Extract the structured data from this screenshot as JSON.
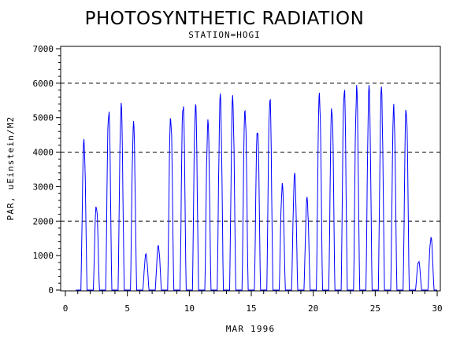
{
  "chart_data": {
    "type": "line",
    "title": "PHOTOSYNTHETIC RADIATION",
    "subtitle": "STATION=HOGI",
    "xlabel": "MAR 1996",
    "ylabel": "PAR, uEinstein/M2",
    "xlim": [
      0,
      30
    ],
    "ylim": [
      0,
      7000
    ],
    "x_ticks": [
      0,
      5,
      10,
      15,
      20,
      25,
      30
    ],
    "y_ticks": [
      0,
      1000,
      2000,
      3000,
      4000,
      5000,
      6000,
      7000
    ],
    "reference_lines": [
      2000,
      4000,
      6000
    ],
    "grid": false,
    "series_color": "#0000ff",
    "series": [
      {
        "daily_peaks": [
          {
            "day": 1,
            "peak": 4400
          },
          {
            "day": 2,
            "peak": 2500
          },
          {
            "day": 3,
            "peak": 5350
          },
          {
            "day": 4,
            "peak": 5450
          },
          {
            "day": 5,
            "peak": 4900
          },
          {
            "day": 6,
            "peak": 1050
          },
          {
            "day": 7,
            "peak": 1300
          },
          {
            "day": 8,
            "peak": 5150
          },
          {
            "day": 9,
            "peak": 5550
          },
          {
            "day": 10,
            "peak": 5500
          },
          {
            "day": 11,
            "peak": 4950
          },
          {
            "day": 12,
            "peak": 5700
          },
          {
            "day": 13,
            "peak": 5650
          },
          {
            "day": 14,
            "peak": 5350
          },
          {
            "day": 15,
            "peak": 4800
          },
          {
            "day": 16,
            "peak": 5700
          },
          {
            "day": 17,
            "peak": 3100
          },
          {
            "day": 18,
            "peak": 3400
          },
          {
            "day": 19,
            "peak": 2700
          },
          {
            "day": 20,
            "peak": 5800
          },
          {
            "day": 21,
            "peak": 5450
          },
          {
            "day": 22,
            "peak": 6000
          },
          {
            "day": 23,
            "peak": 5950
          },
          {
            "day": 24,
            "peak": 5950
          },
          {
            "day": 25,
            "peak": 5900
          },
          {
            "day": 26,
            "peak": 5400
          },
          {
            "day": 27,
            "peak": 5400
          },
          {
            "day": 28,
            "peak": 850
          },
          {
            "day": 29,
            "peak": 1550
          }
        ]
      }
    ]
  }
}
